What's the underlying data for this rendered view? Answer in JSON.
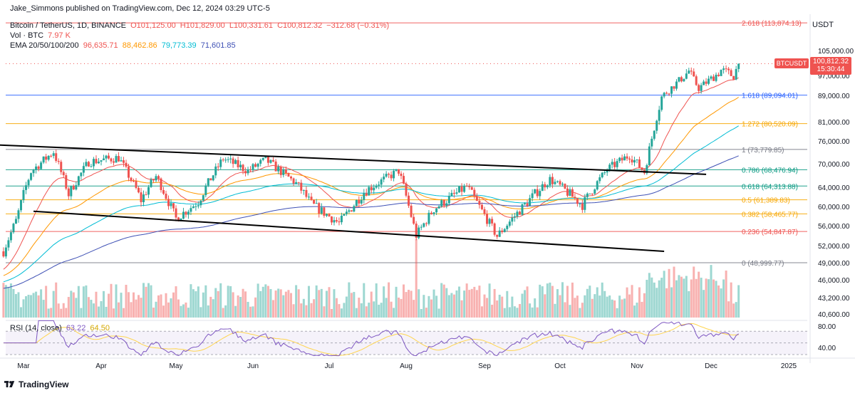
{
  "header": {
    "publisher": "Jake_Simmons published on TradingView.com, Dec 12, 2024 03:29 UTC-5",
    "symbol": "Bitcoin / TetherUS, 1D, BINANCE",
    "open": "O101,125.00",
    "high": "H101,829.00",
    "low": "L100,331.61",
    "close": "C100,812.32",
    "change": "−312.68 (−0.31%)",
    "vol_label": "Vol · BTC",
    "vol_value": "7.97 K",
    "ema_label": "EMA 20/50/100/200",
    "ema_values": [
      "96,635.71",
      "88,462.86",
      "79,773.39",
      "71,601.85"
    ],
    "rsi_label": "RSI (14, close)",
    "rsi_values": [
      "63.22",
      "64.50"
    ]
  },
  "currency": "USDT",
  "badge": {
    "symbol": "BTCUSDT",
    "price": "100,812.32",
    "countdown": "15:30:44"
  },
  "brand": "TradingView",
  "colors": {
    "up": "#26a69a",
    "down": "#ef5350",
    "ema20": "#ef5350",
    "ema50": "#ff9800",
    "ema100": "#00bcd4",
    "ema200": "#3f51b5",
    "rsi": "#7e57c2",
    "rsi_ma": "#ffd54f",
    "fib_red": "#ef5350",
    "fib_blue": "#2962ff",
    "fib_orange": "#f7a600",
    "fib_gray": "#787b86",
    "fib_teal": "#089981"
  },
  "chart_data": {
    "type": "candlestick",
    "title": "Bitcoin / TetherUS, 1D, BINANCE",
    "y_axis_ticks": [
      105000,
      97000,
      89000,
      81000,
      76000,
      70000,
      64000,
      60000,
      56000,
      52000,
      49000,
      46000,
      43200,
      40600
    ],
    "y_axis_labels": [
      "105,000.00",
      "97,000.00",
      "89,000.00",
      "81,000.00",
      "76,000.00",
      "70,000.00",
      "64,000.00",
      "60,000.00",
      "56,000.00",
      "52,000.00",
      "49,000.00",
      "46,000.00",
      "43,200.00",
      "40,600.00"
    ],
    "x_axis_labels": [
      "Mar",
      "Apr",
      "May",
      "Jun",
      "Jul",
      "Aug",
      "Sep",
      "Oct",
      "Nov",
      "Dec",
      "2025"
    ],
    "x_axis_dates": [
      "2024-03-01",
      "2024-04-01",
      "2024-05-01",
      "2024-06-01",
      "2024-07-01",
      "2024-08-01",
      "2024-09-01",
      "2024-10-01",
      "2024-11-01",
      "2024-12-01",
      "2025-01-01"
    ],
    "fib_levels": [
      {
        "ratio": 2.618,
        "price": 113874.13,
        "label": "2.618 (113,874.13)",
        "color": "#ef5350"
      },
      {
        "ratio": 1.618,
        "price": 89094.01,
        "label": "1.618 (89,094.01)",
        "color": "#2962ff"
      },
      {
        "ratio": 1.272,
        "price": 80520.09,
        "label": "1.272 (80,520.09)",
        "color": "#f7a600"
      },
      {
        "ratio": 1,
        "price": 73779.85,
        "label": "1 (73,779.85)",
        "color": "#787b86"
      },
      {
        "ratio": 0.786,
        "price": 68476.94,
        "label": "0.786 (68,476.94)",
        "color": "#089981"
      },
      {
        "ratio": 0.618,
        "price": 64313.88,
        "label": "0.618 (64,313.88)",
        "color": "#089981"
      },
      {
        "ratio": 0.5,
        "price": 61389.83,
        "label": "0.5 (61,389.83)",
        "color": "#f7a600"
      },
      {
        "ratio": 0.382,
        "price": 58465.77,
        "label": "0.382 (58,465.77)",
        "color": "#f7a600"
      },
      {
        "ratio": 0.236,
        "price": 54847.87,
        "label": "0.236 (54,847.87)",
        "color": "#ef5350"
      },
      {
        "ratio": 0,
        "price": 48999.77,
        "label": "0 (48,999.77)",
        "color": "#787b86"
      }
    ],
    "trendlines": [
      {
        "name": "upper channel",
        "points": [
          [
            "2024-02-18",
            75000
          ],
          [
            "2024-11-29",
            67300
          ]
        ]
      },
      {
        "name": "lower channel",
        "points": [
          [
            "2024-03-05",
            59000
          ],
          [
            "2024-11-12",
            51000
          ]
        ]
      }
    ],
    "close_path": [
      [
        "2024-02-22",
        51000
      ],
      [
        "2024-02-27",
        57000
      ],
      [
        "2024-03-04",
        68000
      ],
      [
        "2024-03-13",
        73200
      ],
      [
        "2024-03-19",
        62500
      ],
      [
        "2024-03-27",
        70500
      ],
      [
        "2024-04-08",
        71600
      ],
      [
        "2024-04-17",
        61300
      ],
      [
        "2024-04-23",
        66800
      ],
      [
        "2024-05-01",
        57500
      ],
      [
        "2024-05-10",
        61000
      ],
      [
        "2024-05-20",
        71400
      ],
      [
        "2024-05-30",
        68200
      ],
      [
        "2024-06-06",
        71000
      ],
      [
        "2024-06-18",
        65000
      ],
      [
        "2024-06-24",
        60500
      ],
      [
        "2024-07-05",
        56500
      ],
      [
        "2024-07-15",
        63000
      ],
      [
        "2024-07-29",
        68200
      ],
      [
        "2024-08-05",
        54000
      ],
      [
        "2024-08-12",
        59500
      ],
      [
        "2024-08-25",
        64200
      ],
      [
        "2024-09-06",
        53900
      ],
      [
        "2024-09-15",
        59200
      ],
      [
        "2024-09-27",
        66000
      ],
      [
        "2024-10-10",
        60300
      ],
      [
        "2024-10-20",
        68500
      ],
      [
        "2024-10-29",
        72300
      ],
      [
        "2024-11-04",
        67900
      ],
      [
        "2024-11-11",
        88500
      ],
      [
        "2024-11-22",
        98500
      ],
      [
        "2024-11-26",
        91900
      ],
      [
        "2024-12-05",
        98700
      ],
      [
        "2024-12-10",
        96800
      ],
      [
        "2024-12-12",
        100812.32
      ]
    ],
    "ema": [
      {
        "name": "EMA 20",
        "value": 96635.71
      },
      {
        "name": "EMA 50",
        "value": 88462.86
      },
      {
        "name": "EMA 100",
        "value": 79773.39
      },
      {
        "name": "EMA 200",
        "value": 71601.85
      }
    ],
    "rsi": {
      "value": 63.22,
      "ma": 64.5,
      "axis_labels": [
        "80.00",
        "40.00"
      ],
      "levels": [
        70,
        50,
        30
      ]
    },
    "volume_last": "7.97 K"
  }
}
